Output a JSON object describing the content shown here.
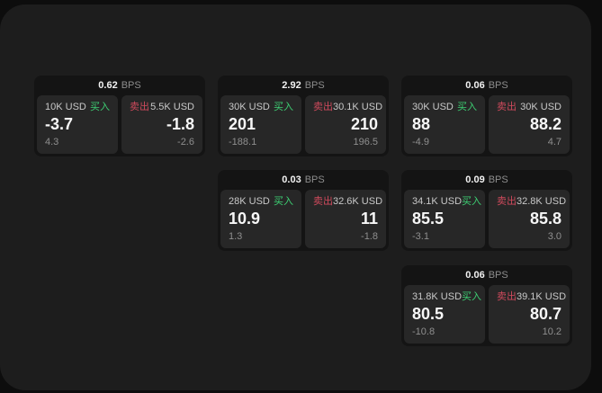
{
  "colors": {
    "page_bg": "#0d0d0d",
    "panel_bg": "#1d1d1d",
    "card_bg": "#141414",
    "tile_bg": "#272727",
    "buy": "#3dcf73",
    "sell": "#cf4a5c"
  },
  "labels": {
    "buy": "买入",
    "sell": "卖出",
    "bps_unit": "BPS"
  },
  "cards": [
    {
      "bps": "0.62",
      "buy": {
        "amount": "10K USD",
        "price": "-3.7",
        "delta": "4.3"
      },
      "sell": {
        "amount": "5.5K USD",
        "price": "-1.8",
        "delta": "-2.6"
      }
    },
    {
      "bps": "2.92",
      "buy": {
        "amount": "30K USD",
        "price": "201",
        "delta": "-188.1"
      },
      "sell": {
        "amount": "30.1K USD",
        "price": "210",
        "delta": "196.5"
      }
    },
    {
      "bps": "0.06",
      "buy": {
        "amount": "30K USD",
        "price": "88",
        "delta": "-4.9"
      },
      "sell": {
        "amount": "30K USD",
        "price": "88.2",
        "delta": "4.7"
      }
    },
    {
      "bps": "0.03",
      "buy": {
        "amount": "28K USD",
        "price": "10.9",
        "delta": "1.3"
      },
      "sell": {
        "amount": "32.6K USD",
        "price": "11",
        "delta": "-1.8"
      }
    },
    {
      "bps": "0.09",
      "buy": {
        "amount": "34.1K USD",
        "price": "85.5",
        "delta": "-3.1"
      },
      "sell": {
        "amount": "32.8K USD",
        "price": "85.8",
        "delta": "3.0"
      }
    },
    {
      "bps": "0.06",
      "buy": {
        "amount": "31.8K USD",
        "price": "80.5",
        "delta": "-10.8"
      },
      "sell": {
        "amount": "39.1K USD",
        "price": "80.7",
        "delta": "10.2"
      }
    }
  ]
}
